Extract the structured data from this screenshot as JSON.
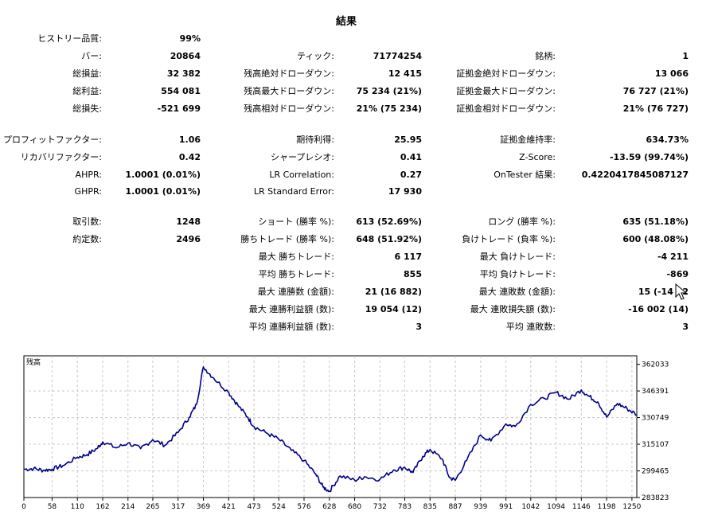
{
  "title": "結果",
  "stats": {
    "col1": [
      {
        "label": "ヒストリー品質:",
        "value": "99%",
        "row": 0
      },
      {
        "label": "バー:",
        "value": "20864",
        "row": 1
      },
      {
        "label": "総損益:",
        "value": "32 382",
        "row": 2
      },
      {
        "label": "総利益:",
        "value": "554 081",
        "row": 3
      },
      {
        "label": "総損失:",
        "value": "-521 699",
        "row": 4
      },
      {
        "label": "プロフィットファクター:",
        "value": "1.06",
        "row": 5
      },
      {
        "label": "リカバリファクター:",
        "value": "0.42",
        "row": 6
      },
      {
        "label": "AHPR:",
        "value": "1.0001 (0.01%)",
        "row": 7
      },
      {
        "label": "GHPR:",
        "value": "1.0001 (0.01%)",
        "row": 8
      },
      {
        "label": "取引数:",
        "value": "1248",
        "row": 9
      },
      {
        "label": "約定数:",
        "value": "2496",
        "row": 10
      }
    ],
    "col2": [
      {
        "label": "ティック:",
        "value": "71774254",
        "row": 1
      },
      {
        "label": "残高絶対ドローダウン:",
        "value": "12 415",
        "row": 2
      },
      {
        "label": "残高最大ドローダウン:",
        "value": "75 234 (21%)",
        "row": 3
      },
      {
        "label": "残高相対ドローダウン:",
        "value": "21% (75 234)",
        "row": 4
      },
      {
        "label": "期待利得:",
        "value": "25.95",
        "row": 5
      },
      {
        "label": "シャープレシオ:",
        "value": "0.41",
        "row": 6
      },
      {
        "label": "LR Correlation:",
        "value": "0.27",
        "row": 7
      },
      {
        "label": "LR Standard Error:",
        "value": "17 930",
        "row": 8
      },
      {
        "label": "ショート (勝率 %):",
        "value": "613 (52.69%)",
        "row": 9
      },
      {
        "label": "勝ちトレード (勝率 %):",
        "value": "648 (51.92%)",
        "row": 10
      },
      {
        "label": "最大 勝ちトレード:",
        "value": "6 117",
        "row": 11
      },
      {
        "label": "平均 勝ちトレード:",
        "value": "855",
        "row": 12
      },
      {
        "label": "最大 連勝数 (金額):",
        "value": "21 (16 882)",
        "row": 13
      },
      {
        "label": "最大 連勝利益額 (数):",
        "value": "19 054 (12)",
        "row": 14
      },
      {
        "label": "平均 連勝利益額 (数):",
        "value": "3",
        "row": 15
      }
    ],
    "col3": [
      {
        "label": "銘柄:",
        "value": "1",
        "row": 1
      },
      {
        "label": "証拠金絶対ドローダウン:",
        "value": "13 066",
        "row": 2
      },
      {
        "label": "証拠金最大ドローダウン:",
        "value": "76 727 (21%)",
        "row": 3
      },
      {
        "label": "証拠金相対ドローダウン:",
        "value": "21% (76 727)",
        "row": 4
      },
      {
        "label": "証拠金維持率:",
        "value": "634.73%",
        "row": 5
      },
      {
        "label": "Z-Score:",
        "value": "-13.59 (99.74%)",
        "row": 6
      },
      {
        "label": "OnTester 結果:",
        "value": "0.4220417845087127",
        "row": 7
      },
      {
        "label": "ロング (勝率 %):",
        "value": "635 (51.18%)",
        "row": 9
      },
      {
        "label": "負けトレード (負率 %):",
        "value": "600 (48.08%)",
        "row": 10
      },
      {
        "label": "最大 負けトレード:",
        "value": "-4 211",
        "row": 11
      },
      {
        "label": "平均 負けトレード:",
        "value": "-869",
        "row": 12
      },
      {
        "label": "最大 連敗数 (金額):",
        "value": "15 (-14 52",
        "row": 13
      },
      {
        "label": "最大 連敗損失額 (数):",
        "value": "-16 002 (14)",
        "row": 14
      },
      {
        "label": "平均 連敗数:",
        "value": "3",
        "row": 15
      }
    ]
  },
  "chart_data": {
    "type": "line",
    "legend": "残高",
    "color": "#00008b",
    "grid": true,
    "x_ticks": [
      "0",
      "58",
      "110",
      "162",
      "214",
      "265",
      "317",
      "369",
      "421",
      "473",
      "524",
      "576",
      "628",
      "680",
      "732",
      "783",
      "835",
      "887",
      "939",
      "991",
      "1042",
      "1094",
      "1146",
      "1198",
      "1250"
    ],
    "y_ticks": [
      "362033",
      "346391",
      "330749",
      "315107",
      "299465",
      "283823"
    ],
    "xlim": [
      0,
      1260
    ],
    "ylim": [
      283823,
      367000
    ],
    "x": [
      0,
      20,
      40,
      58,
      80,
      110,
      130,
      150,
      162,
      190,
      214,
      240,
      265,
      290,
      317,
      340,
      355,
      369,
      390,
      421,
      440,
      460,
      473,
      500,
      524,
      550,
      576,
      600,
      615,
      628,
      650,
      680,
      700,
      732,
      760,
      783,
      800,
      820,
      835,
      860,
      875,
      887,
      910,
      939,
      960,
      991,
      1010,
      1042,
      1070,
      1094,
      1120,
      1146,
      1160,
      1180,
      1198,
      1220,
      1240,
      1260
    ],
    "y": [
      300400,
      300800,
      299800,
      300500,
      302500,
      307500,
      309000,
      312500,
      316500,
      313000,
      315800,
      312500,
      317800,
      314500,
      322000,
      331000,
      338500,
      360500,
      354000,
      345500,
      338000,
      331000,
      325500,
      321500,
      318000,
      311500,
      305500,
      297500,
      290000,
      287500,
      296500,
      294000,
      296000,
      294500,
      300000,
      301500,
      298500,
      308000,
      312000,
      306500,
      295500,
      294000,
      305500,
      320500,
      317000,
      327000,
      325500,
      338500,
      342000,
      345500,
      341500,
      347000,
      343500,
      340000,
      331000,
      339000,
      336000,
      332500
    ]
  }
}
